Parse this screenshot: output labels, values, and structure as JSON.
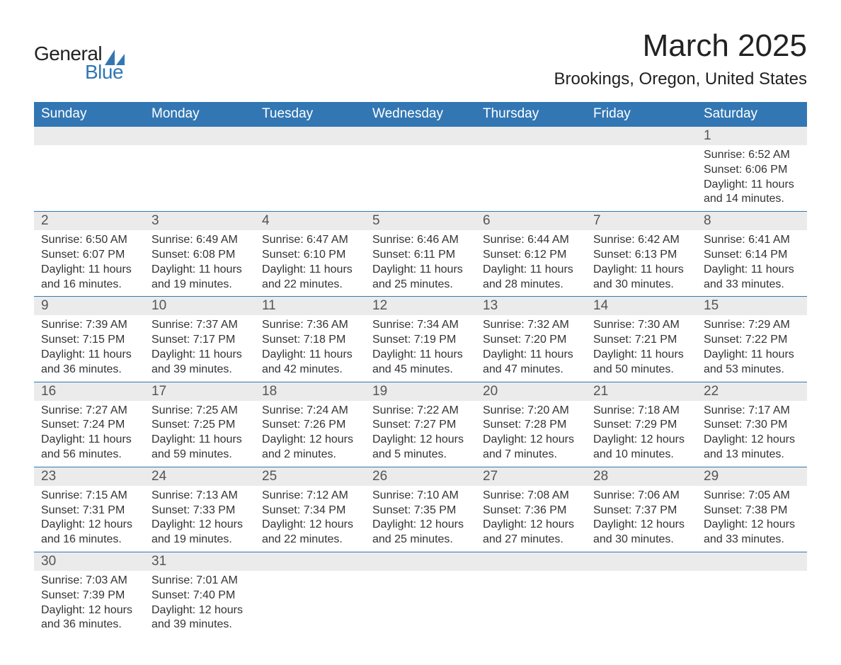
{
  "logo": {
    "general": "General",
    "blue": "Blue",
    "sail_color": "#3277b3"
  },
  "header": {
    "month_title": "March 2025",
    "location": "Brookings, Oregon, United States"
  },
  "calendar": {
    "day_headers": [
      "Sunday",
      "Monday",
      "Tuesday",
      "Wednesday",
      "Thursday",
      "Friday",
      "Saturday"
    ],
    "header_bg": "#3277b3",
    "header_text_color": "#ffffff",
    "daynum_bg": "#ebebeb",
    "row_border_color": "#3277b3",
    "body_text_color": "#333333",
    "weeks": [
      [
        {
          "empty": true
        },
        {
          "empty": true
        },
        {
          "empty": true
        },
        {
          "empty": true
        },
        {
          "empty": true
        },
        {
          "empty": true
        },
        {
          "day": "1",
          "sunrise": "Sunrise: 6:52 AM",
          "sunset": "Sunset: 6:06 PM",
          "daylight1": "Daylight: 11 hours",
          "daylight2": "and 14 minutes."
        }
      ],
      [
        {
          "day": "2",
          "sunrise": "Sunrise: 6:50 AM",
          "sunset": "Sunset: 6:07 PM",
          "daylight1": "Daylight: 11 hours",
          "daylight2": "and 16 minutes."
        },
        {
          "day": "3",
          "sunrise": "Sunrise: 6:49 AM",
          "sunset": "Sunset: 6:08 PM",
          "daylight1": "Daylight: 11 hours",
          "daylight2": "and 19 minutes."
        },
        {
          "day": "4",
          "sunrise": "Sunrise: 6:47 AM",
          "sunset": "Sunset: 6:10 PM",
          "daylight1": "Daylight: 11 hours",
          "daylight2": "and 22 minutes."
        },
        {
          "day": "5",
          "sunrise": "Sunrise: 6:46 AM",
          "sunset": "Sunset: 6:11 PM",
          "daylight1": "Daylight: 11 hours",
          "daylight2": "and 25 minutes."
        },
        {
          "day": "6",
          "sunrise": "Sunrise: 6:44 AM",
          "sunset": "Sunset: 6:12 PM",
          "daylight1": "Daylight: 11 hours",
          "daylight2": "and 28 minutes."
        },
        {
          "day": "7",
          "sunrise": "Sunrise: 6:42 AM",
          "sunset": "Sunset: 6:13 PM",
          "daylight1": "Daylight: 11 hours",
          "daylight2": "and 30 minutes."
        },
        {
          "day": "8",
          "sunrise": "Sunrise: 6:41 AM",
          "sunset": "Sunset: 6:14 PM",
          "daylight1": "Daylight: 11 hours",
          "daylight2": "and 33 minutes."
        }
      ],
      [
        {
          "day": "9",
          "sunrise": "Sunrise: 7:39 AM",
          "sunset": "Sunset: 7:15 PM",
          "daylight1": "Daylight: 11 hours",
          "daylight2": "and 36 minutes."
        },
        {
          "day": "10",
          "sunrise": "Sunrise: 7:37 AM",
          "sunset": "Sunset: 7:17 PM",
          "daylight1": "Daylight: 11 hours",
          "daylight2": "and 39 minutes."
        },
        {
          "day": "11",
          "sunrise": "Sunrise: 7:36 AM",
          "sunset": "Sunset: 7:18 PM",
          "daylight1": "Daylight: 11 hours",
          "daylight2": "and 42 minutes."
        },
        {
          "day": "12",
          "sunrise": "Sunrise: 7:34 AM",
          "sunset": "Sunset: 7:19 PM",
          "daylight1": "Daylight: 11 hours",
          "daylight2": "and 45 minutes."
        },
        {
          "day": "13",
          "sunrise": "Sunrise: 7:32 AM",
          "sunset": "Sunset: 7:20 PM",
          "daylight1": "Daylight: 11 hours",
          "daylight2": "and 47 minutes."
        },
        {
          "day": "14",
          "sunrise": "Sunrise: 7:30 AM",
          "sunset": "Sunset: 7:21 PM",
          "daylight1": "Daylight: 11 hours",
          "daylight2": "and 50 minutes."
        },
        {
          "day": "15",
          "sunrise": "Sunrise: 7:29 AM",
          "sunset": "Sunset: 7:22 PM",
          "daylight1": "Daylight: 11 hours",
          "daylight2": "and 53 minutes."
        }
      ],
      [
        {
          "day": "16",
          "sunrise": "Sunrise: 7:27 AM",
          "sunset": "Sunset: 7:24 PM",
          "daylight1": "Daylight: 11 hours",
          "daylight2": "and 56 minutes."
        },
        {
          "day": "17",
          "sunrise": "Sunrise: 7:25 AM",
          "sunset": "Sunset: 7:25 PM",
          "daylight1": "Daylight: 11 hours",
          "daylight2": "and 59 minutes."
        },
        {
          "day": "18",
          "sunrise": "Sunrise: 7:24 AM",
          "sunset": "Sunset: 7:26 PM",
          "daylight1": "Daylight: 12 hours",
          "daylight2": "and 2 minutes."
        },
        {
          "day": "19",
          "sunrise": "Sunrise: 7:22 AM",
          "sunset": "Sunset: 7:27 PM",
          "daylight1": "Daylight: 12 hours",
          "daylight2": "and 5 minutes."
        },
        {
          "day": "20",
          "sunrise": "Sunrise: 7:20 AM",
          "sunset": "Sunset: 7:28 PM",
          "daylight1": "Daylight: 12 hours",
          "daylight2": "and 7 minutes."
        },
        {
          "day": "21",
          "sunrise": "Sunrise: 7:18 AM",
          "sunset": "Sunset: 7:29 PM",
          "daylight1": "Daylight: 12 hours",
          "daylight2": "and 10 minutes."
        },
        {
          "day": "22",
          "sunrise": "Sunrise: 7:17 AM",
          "sunset": "Sunset: 7:30 PM",
          "daylight1": "Daylight: 12 hours",
          "daylight2": "and 13 minutes."
        }
      ],
      [
        {
          "day": "23",
          "sunrise": "Sunrise: 7:15 AM",
          "sunset": "Sunset: 7:31 PM",
          "daylight1": "Daylight: 12 hours",
          "daylight2": "and 16 minutes."
        },
        {
          "day": "24",
          "sunrise": "Sunrise: 7:13 AM",
          "sunset": "Sunset: 7:33 PM",
          "daylight1": "Daylight: 12 hours",
          "daylight2": "and 19 minutes."
        },
        {
          "day": "25",
          "sunrise": "Sunrise: 7:12 AM",
          "sunset": "Sunset: 7:34 PM",
          "daylight1": "Daylight: 12 hours",
          "daylight2": "and 22 minutes."
        },
        {
          "day": "26",
          "sunrise": "Sunrise: 7:10 AM",
          "sunset": "Sunset: 7:35 PM",
          "daylight1": "Daylight: 12 hours",
          "daylight2": "and 25 minutes."
        },
        {
          "day": "27",
          "sunrise": "Sunrise: 7:08 AM",
          "sunset": "Sunset: 7:36 PM",
          "daylight1": "Daylight: 12 hours",
          "daylight2": "and 27 minutes."
        },
        {
          "day": "28",
          "sunrise": "Sunrise: 7:06 AM",
          "sunset": "Sunset: 7:37 PM",
          "daylight1": "Daylight: 12 hours",
          "daylight2": "and 30 minutes."
        },
        {
          "day": "29",
          "sunrise": "Sunrise: 7:05 AM",
          "sunset": "Sunset: 7:38 PM",
          "daylight1": "Daylight: 12 hours",
          "daylight2": "and 33 minutes."
        }
      ],
      [
        {
          "day": "30",
          "sunrise": "Sunrise: 7:03 AM",
          "sunset": "Sunset: 7:39 PM",
          "daylight1": "Daylight: 12 hours",
          "daylight2": "and 36 minutes."
        },
        {
          "day": "31",
          "sunrise": "Sunrise: 7:01 AM",
          "sunset": "Sunset: 7:40 PM",
          "daylight1": "Daylight: 12 hours",
          "daylight2": "and 39 minutes."
        },
        {
          "empty": true
        },
        {
          "empty": true
        },
        {
          "empty": true
        },
        {
          "empty": true
        },
        {
          "empty": true
        }
      ]
    ]
  }
}
